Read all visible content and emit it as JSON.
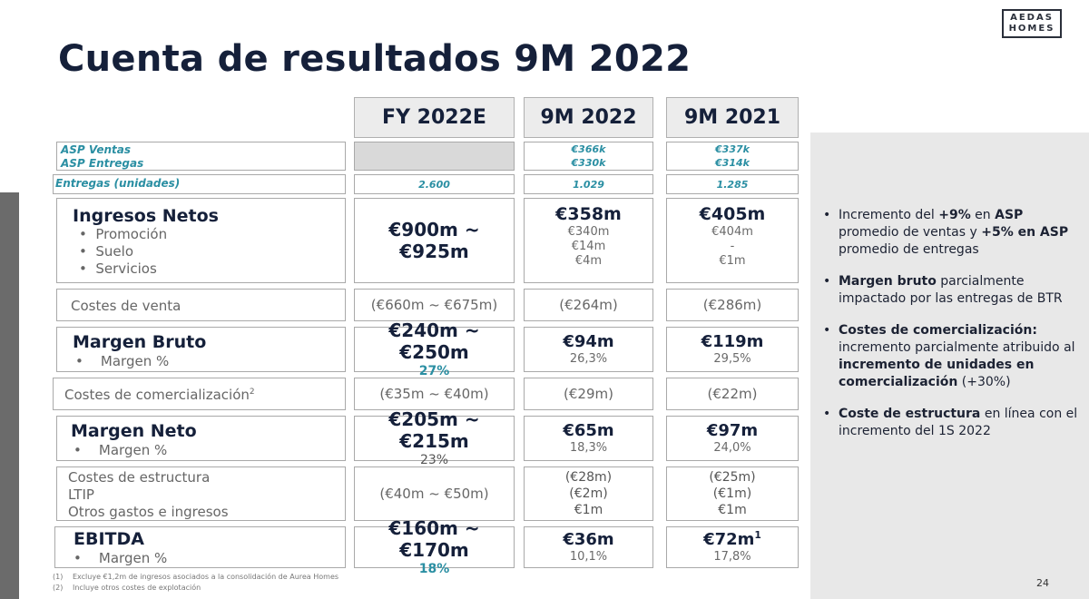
{
  "title": "Cuenta de resultados 9M 2022",
  "logo": {
    "line1": "AEDAS",
    "line2": "HOMES"
  },
  "columns": [
    "FY 2022E",
    "9M 2022",
    "9M 2021"
  ],
  "asp": {
    "label1": "ASP Ventas",
    "label2": "ASP Entregas",
    "m22": [
      "€366k",
      "€330k"
    ],
    "m21": [
      "€337k",
      "€314k"
    ]
  },
  "entregas": {
    "label": "Entregas (unidades)",
    "fy": "2.600",
    "m22": "1.029",
    "m21": "1.285"
  },
  "ingresos": {
    "title": "Ingresos Netos",
    "items": [
      "Promoción",
      "Suelo",
      "Servicios"
    ],
    "fy": [
      "€900m ~",
      "€925m"
    ],
    "m22": {
      "total": "€358m",
      "items": [
        "€340m",
        "€14m",
        "€4m"
      ]
    },
    "m21": {
      "total": "€405m",
      "items": [
        "€404m",
        "-",
        "€1m"
      ]
    }
  },
  "costes_venta": {
    "label": "Costes de venta",
    "fy": "(€660m ~ €675m)",
    "m22": "(€264m)",
    "m21": "(€286m)"
  },
  "margen_bruto": {
    "title": "Margen Bruto",
    "sub": "Margen %",
    "fy": "€240m ~ €250m",
    "fy_pct": "27%",
    "m22": "€94m",
    "m22_pct": "26,3%",
    "m21": "€119m",
    "m21_pct": "29,5%"
  },
  "costes_comercializacion": {
    "label": "Costes de comercialización",
    "sup": "2",
    "fy": "(€35m ~ €40m)",
    "m22": "(€29m)",
    "m21": "(€22m)"
  },
  "margen_neto": {
    "title": "Margen Neto",
    "sub": "Margen %",
    "fy": "€205m ~ €215m",
    "fy_pct": "23%",
    "m22": "€65m",
    "m22_pct": "18,3%",
    "m21": "€97m",
    "m21_pct": "24,0%"
  },
  "costes_estructura": {
    "labels": [
      "Costes de estructura",
      "LTIP",
      "Otros gastos e ingresos"
    ],
    "fy": "(€40m ~ €50m)",
    "m22": [
      "(€28m)",
      "(€2m)",
      "€1m"
    ],
    "m21": [
      "(€25m)",
      "(€1m)",
      "€1m"
    ]
  },
  "ebitda": {
    "title": "EBITDA",
    "sub": "Margen %",
    "fy": "€160m ~ €170m",
    "fy_pct": "18%",
    "m22": "€36m",
    "m22_pct": "10,1%",
    "m21": "€72m",
    "m21_sup": "1",
    "m21_pct": "17,8%"
  },
  "bullets": [
    [
      {
        "t": "Incremento del ",
        "b": false
      },
      {
        "t": "+9%",
        "b": true
      },
      {
        "t": " en ",
        "b": false
      },
      {
        "t": "ASP",
        "b": true
      },
      {
        "t": " promedio de ventas y ",
        "b": false
      },
      {
        "t": "+5% en ASP",
        "b": true
      },
      {
        "t": " promedio de entregas",
        "b": false
      }
    ],
    [
      {
        "t": "Margen bruto",
        "b": true
      },
      {
        "t": " parcialmente impactado por las entregas de BTR",
        "b": false
      }
    ],
    [
      {
        "t": "Costes de comercialización:",
        "b": true
      },
      {
        "t": " incremento parcialmente atribuido al ",
        "b": false
      },
      {
        "t": "incremento de unidades en comercialización",
        "b": true
      },
      {
        "t": " (+30%)",
        "b": false
      }
    ],
    [
      {
        "t": "Coste de estructura",
        "b": true
      },
      {
        "t": " en línea con el incremento del 1S 2022",
        "b": false
      }
    ]
  ],
  "footnotes": [
    {
      "num": "(1)",
      "text": "Excluye €1,2m de ingresos asociados a la consolidación de Aurea Homes"
    },
    {
      "num": "(2)",
      "text": "Incluye otros costes de explotación"
    }
  ],
  "page_number": "24"
}
